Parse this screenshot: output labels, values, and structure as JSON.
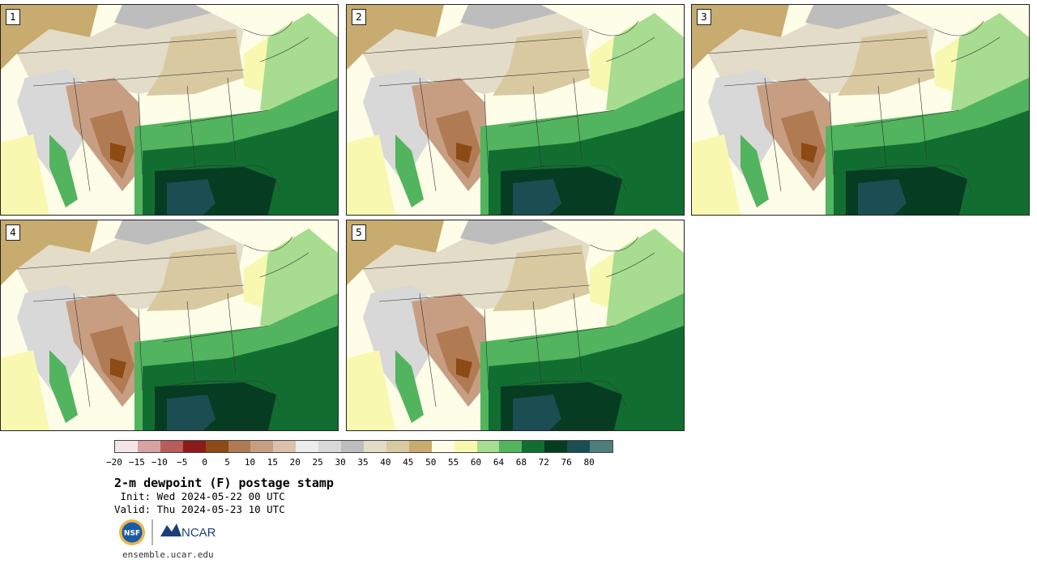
{
  "panels": [
    {
      "label": "1"
    },
    {
      "label": "2"
    },
    {
      "label": "3"
    },
    {
      "label": "4"
    },
    {
      "label": "5"
    }
  ],
  "colorbar": {
    "ticks": [
      "−20",
      "−15",
      "−10",
      "−5",
      "0",
      "5",
      "10",
      "15",
      "20",
      "25",
      "30",
      "35",
      "40",
      "45",
      "50",
      "55",
      "60",
      "64",
      "68",
      "72",
      "76",
      "80"
    ],
    "colors": [
      "#f4e6e6",
      "#d9a2a2",
      "#b85c5c",
      "#8c1a1a",
      "#8c4a14",
      "#b07a52",
      "#c89e82",
      "#dcc0aa",
      "#ececec",
      "#d8d8d8",
      "#bdbdbd",
      "#e2dcc8",
      "#d8c9a0",
      "#c8ab6e",
      "#fdfde8",
      "#f8f8b0",
      "#a8dc90",
      "#52b45e",
      "#126e30",
      "#063c22",
      "#1a4e52",
      "#4e7e7c"
    ]
  },
  "title": "2-m dewpoint (F) postage stamp",
  "init": " Init: Wed 2024-05-22 00 UTC",
  "valid": "Valid: Thu 2024-05-23 10 UTC",
  "logos": {
    "nsf": "NSF",
    "ncar": "NCAR"
  },
  "site": "ensemble.ucar.edu"
}
